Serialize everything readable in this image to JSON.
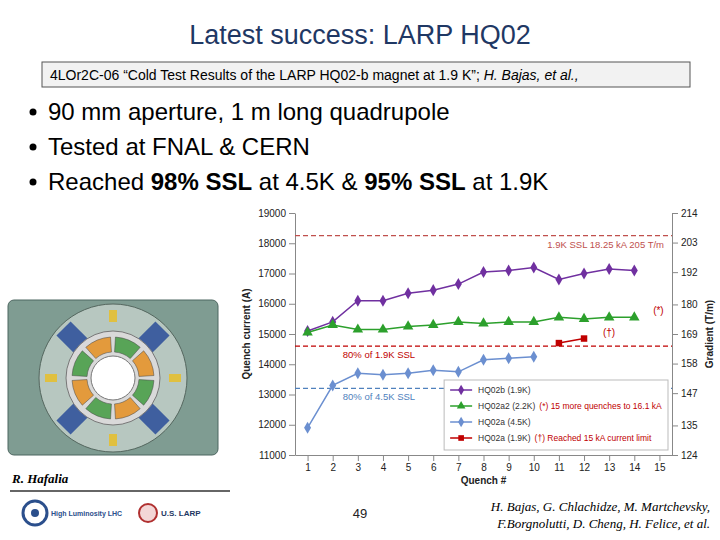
{
  "slide": {
    "title": "Latest success: LARP HQ02",
    "reference": [
      "4LOr2C-06 “Cold Test Results of the LARP HQ02-b magnet at 1.9 K”; ",
      "H. Bajas, et al.,"
    ],
    "bullets": [
      [
        "90 mm aperture, 1 m long quadrupole"
      ],
      [
        "Tested at FNAL & CERN"
      ],
      [
        "Reached ",
        "98% SSL",
        " at 4.5K & ",
        "95% SSL",
        " at 1.9K"
      ]
    ],
    "credit": "R. Hafalia",
    "page": "49",
    "authors": [
      "H. Bajas, G. Chlachidze, M. Martchevsky,",
      "F.Borgnolutti, D. Cheng, H. Felice,  et al."
    ],
    "logos": [
      "High Luminosity LHC",
      "U.S. LARP"
    ]
  },
  "chart_data": {
    "type": "line",
    "xlabel": "Quench #",
    "ylabel": "Quench current (A)",
    "y2label": "Gradient (T/m)",
    "xlim": [
      0.5,
      15.5
    ],
    "xticks": [
      1,
      2,
      3,
      4,
      5,
      6,
      7,
      8,
      9,
      10,
      11,
      12,
      13,
      14,
      15
    ],
    "ylim": [
      11000,
      19000
    ],
    "yticks": [
      11000,
      12000,
      13000,
      14000,
      15000,
      16000,
      17000,
      18000,
      19000
    ],
    "y2lim": [
      124,
      214
    ],
    "y2ticks": [
      124,
      135,
      147,
      158,
      169,
      180,
      192,
      203,
      214
    ],
    "grid": false,
    "legend": "lower right",
    "series": [
      {
        "name": "HQ02b (1.9K)",
        "color": "#7030a0",
        "marker": "diamond",
        "line_style": "solid",
        "x": [
          1,
          2,
          3,
          4,
          5,
          6,
          7,
          8,
          9,
          10,
          11,
          12,
          13,
          14
        ],
        "values": [
          15100,
          15400,
          16100,
          16100,
          16350,
          16450,
          16650,
          17050,
          17100,
          17200,
          16800,
          17000,
          17150,
          17100
        ]
      },
      {
        "name": "HQ02a2 (2.2K)",
        "note": "(*) 15 more quenches to 16.1 kA",
        "color": "#2ca02c",
        "marker": "triangle",
        "line_style": "solid",
        "x": [
          1,
          2,
          3,
          4,
          5,
          6,
          7,
          8,
          9,
          10,
          11,
          12,
          13,
          14
        ],
        "values": [
          15050,
          15300,
          15150,
          15150,
          15250,
          15300,
          15400,
          15350,
          15400,
          15400,
          15550,
          15500,
          15550,
          15550
        ]
      },
      {
        "name": "HQ02a (4.5K)",
        "color": "#6b8fd0",
        "marker": "diamond",
        "line_style": "solid",
        "x": [
          1,
          2,
          3,
          4,
          5,
          6,
          7,
          8,
          9,
          10
        ],
        "values": [
          11900,
          13300,
          13700,
          13650,
          13700,
          13800,
          13750,
          14150,
          14200,
          14250
        ]
      },
      {
        "name": "HQ02a (1.9K)",
        "note": "(†) Reached 15 kA current limit",
        "color": "#c00000",
        "marker": "square",
        "line_style": "solid",
        "x": [
          11,
          12
        ],
        "values": [
          14700,
          14850
        ]
      }
    ],
    "reference_lines": [
      {
        "text": "1.9K SSL 18.25 kA 205 T/m",
        "value": 18250,
        "color": "#c0504d"
      },
      {
        "text": "80% of 1.9K SSL",
        "value": 14600,
        "color": "#c00000"
      },
      {
        "text": "80% of 4.5K SSL",
        "value": 13200,
        "color": "#4f81bd"
      }
    ],
    "annotations": [
      {
        "text": "(*)",
        "x": 14.75,
        "y": 15650,
        "color": "#c00000"
      },
      {
        "text": "(†)",
        "x": 12.75,
        "y": 14950,
        "color": "#c00000"
      }
    ]
  }
}
